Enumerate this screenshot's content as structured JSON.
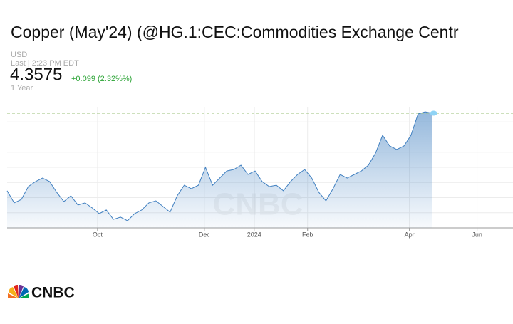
{
  "chart_data": {
    "type": "area",
    "title": "Copper (May'24) (@HG.1:CEC:Commodities Exchange Centr",
    "currency": "USD",
    "last_time": "Last | 2:23 PM EDT",
    "last_price": "4.3575",
    "change": "+0.099 (2.32%%)",
    "range_label": "1 Year",
    "logo": "CNBC",
    "color": "#3f7fc0",
    "values": [
      3.845,
      3.765,
      3.788,
      3.873,
      3.906,
      3.929,
      3.906,
      3.835,
      3.774,
      3.812,
      3.751,
      3.765,
      3.732,
      3.694,
      3.718,
      3.656,
      3.671,
      3.647,
      3.694,
      3.718,
      3.765,
      3.779,
      3.741,
      3.704,
      3.812,
      3.882,
      3.859,
      3.882,
      4.0,
      3.882,
      3.929,
      3.976,
      3.986,
      4.014,
      3.953,
      3.976,
      3.906,
      3.873,
      3.882,
      3.845,
      3.906,
      3.953,
      3.986,
      3.929,
      3.835,
      3.779,
      3.859,
      3.953,
      3.929,
      3.953,
      3.976,
      4.014,
      4.094,
      4.212,
      4.141,
      4.118,
      4.141,
      4.212,
      4.353,
      4.367,
      4.3575
    ],
    "xlim": [
      0,
      71.4
    ],
    "xticks": [
      {
        "value": 12.76,
        "label": "Oct"
      },
      {
        "value": 27.84,
        "label": "Dec"
      },
      {
        "value": 34.87,
        "label": "2024"
      },
      {
        "value": 42.41,
        "label": "Feb"
      },
      {
        "value": 56.78,
        "label": "Apr"
      },
      {
        "value": 66.33,
        "label": "Jun"
      }
    ],
    "ylim": [
      3.6,
      4.4
    ],
    "yticks": [
      3.7,
      3.8,
      3.9,
      4.0,
      4.1,
      4.2,
      4.3
    ],
    "grid": true
  }
}
